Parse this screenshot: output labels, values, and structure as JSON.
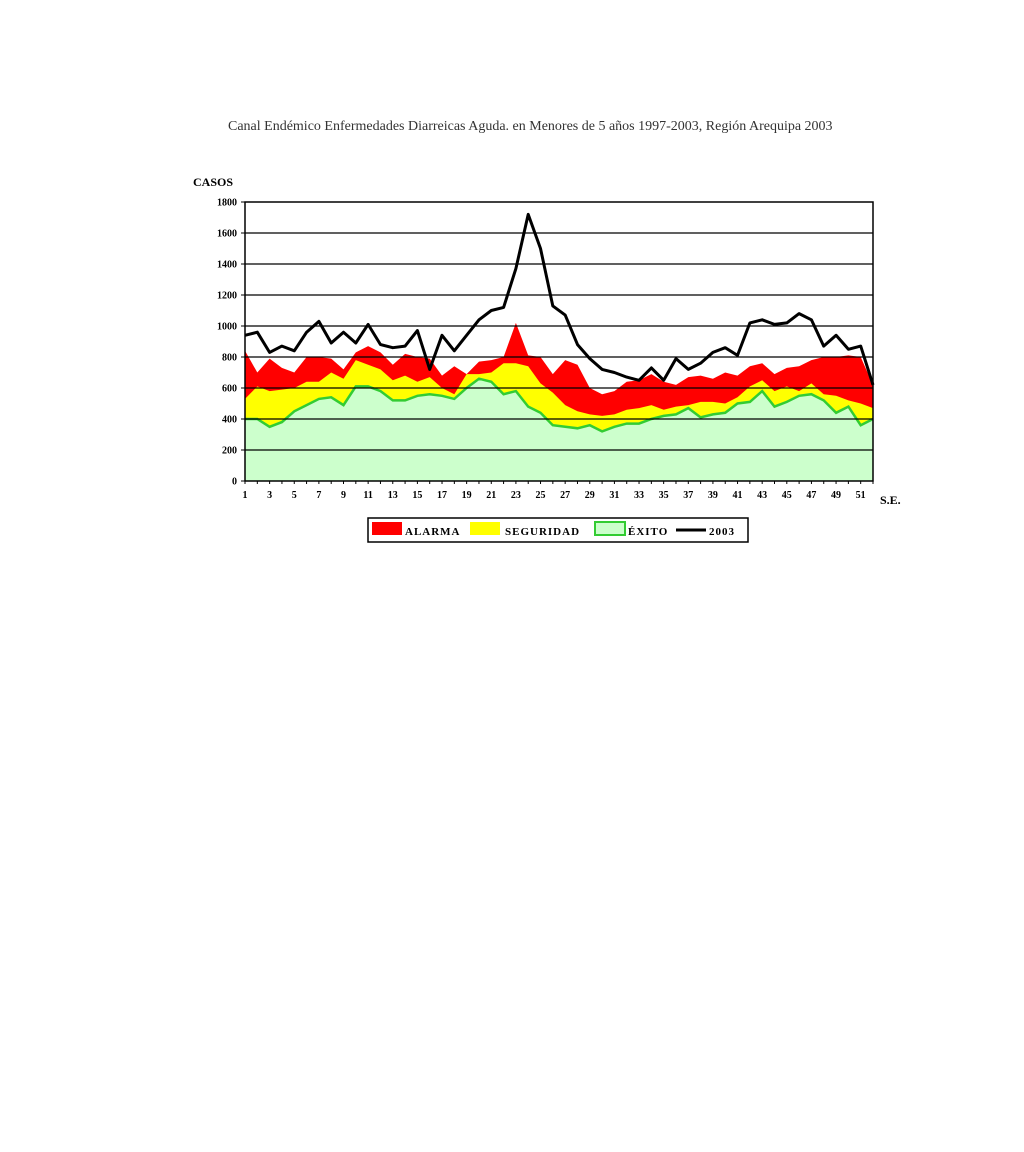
{
  "chart_data": {
    "type": "area",
    "title": "Canal Endémico Enfermedades Diarreicas Aguda. en Menores de 5 años 1997-2003, Región  Arequipa 2003",
    "ylabel": "CASOS",
    "xlabel": "S.E.",
    "ylim": [
      0,
      1800
    ],
    "yticks": [
      0,
      200,
      400,
      600,
      800,
      1000,
      1200,
      1400,
      1600,
      1800
    ],
    "x": [
      1,
      2,
      3,
      4,
      5,
      6,
      7,
      8,
      9,
      10,
      11,
      12,
      13,
      14,
      15,
      16,
      17,
      18,
      19,
      20,
      21,
      22,
      23,
      24,
      25,
      26,
      27,
      28,
      29,
      30,
      31,
      32,
      33,
      34,
      35,
      36,
      37,
      38,
      39,
      40,
      41,
      42,
      43,
      44,
      45,
      46,
      47,
      48,
      49,
      50,
      51,
      52
    ],
    "xticks": [
      1,
      3,
      5,
      7,
      9,
      11,
      13,
      15,
      17,
      19,
      21,
      23,
      25,
      27,
      29,
      31,
      33,
      35,
      37,
      39,
      41,
      43,
      45,
      47,
      49,
      51
    ],
    "grid": true,
    "legend_position": "bottom",
    "colors": {
      "alarma": "#ff0000",
      "seguridad": "#ffff00",
      "exito_fill": "#ccffcc",
      "exito_line": "#33cc33",
      "line_2003": "#000000"
    },
    "series": [
      {
        "name": "ALARMA",
        "values": [
          840,
          700,
          790,
          730,
          700,
          800,
          800,
          790,
          720,
          830,
          870,
          830,
          750,
          820,
          800,
          790,
          680,
          740,
          690,
          770,
          780,
          800,
          1020,
          810,
          800,
          690,
          780,
          750,
          600,
          560,
          580,
          640,
          650,
          690,
          640,
          620,
          670,
          680,
          660,
          700,
          680,
          740,
          760,
          690,
          730,
          740,
          780,
          800,
          800,
          810,
          800,
          620
        ]
      },
      {
        "name": "SEGURIDAD",
        "values": [
          530,
          610,
          580,
          590,
          600,
          640,
          640,
          700,
          660,
          780,
          750,
          720,
          650,
          680,
          640,
          670,
          600,
          560,
          690,
          690,
          700,
          760,
          760,
          740,
          630,
          570,
          490,
          450,
          430,
          420,
          430,
          460,
          470,
          490,
          460,
          480,
          490,
          510,
          510,
          500,
          540,
          610,
          650,
          580,
          610,
          580,
          630,
          560,
          550,
          520,
          500,
          470
        ]
      },
      {
        "name": "ÉXITO",
        "values": [
          400,
          400,
          350,
          380,
          450,
          490,
          530,
          540,
          490,
          610,
          610,
          580,
          520,
          520,
          550,
          560,
          550,
          530,
          600,
          660,
          640,
          560,
          580,
          480,
          440,
          360,
          350,
          340,
          360,
          320,
          350,
          370,
          370,
          400,
          420,
          430,
          470,
          410,
          430,
          440,
          500,
          510,
          580,
          480,
          510,
          550,
          560,
          520,
          440,
          480,
          360,
          400
        ]
      },
      {
        "name": "2003",
        "values": [
          940,
          960,
          830,
          870,
          840,
          960,
          1030,
          890,
          960,
          890,
          1010,
          880,
          860,
          870,
          970,
          720,
          940,
          840,
          940,
          1040,
          1100,
          1120,
          1370,
          1720,
          1500,
          1130,
          1070,
          880,
          790,
          720,
          700,
          670,
          650,
          730,
          650,
          790,
          720,
          760,
          830,
          860,
          810,
          1020,
          1040,
          1010,
          1020,
          1080,
          1040,
          870,
          940,
          850,
          870,
          620
        ]
      }
    ]
  }
}
